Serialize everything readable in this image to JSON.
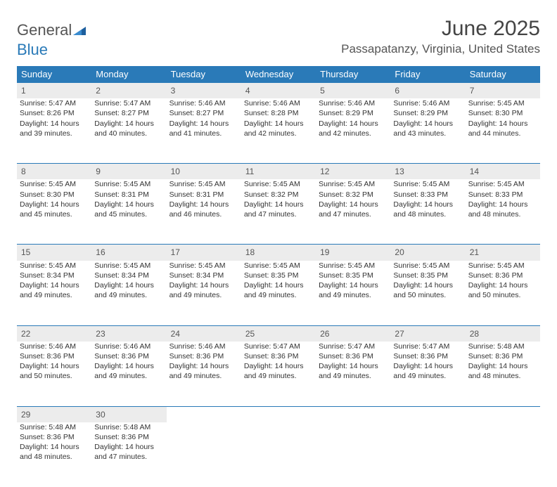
{
  "brand": {
    "word1": "General",
    "word2": "Blue",
    "accent_color": "#2a7ab8"
  },
  "title": "June 2025",
  "location": "Passapatanzy, Virginia, United States",
  "colors": {
    "header_bg": "#2a7ab8",
    "header_text": "#ffffff",
    "daynum_bg": "#ececec",
    "rule": "#2a7ab8",
    "body_text": "#333333"
  },
  "weekdays": [
    "Sunday",
    "Monday",
    "Tuesday",
    "Wednesday",
    "Thursday",
    "Friday",
    "Saturday"
  ],
  "weeks": [
    [
      {
        "n": "1",
        "sr": "5:47 AM",
        "ss": "8:26 PM",
        "dl": "14 hours and 39 minutes."
      },
      {
        "n": "2",
        "sr": "5:47 AM",
        "ss": "8:27 PM",
        "dl": "14 hours and 40 minutes."
      },
      {
        "n": "3",
        "sr": "5:46 AM",
        "ss": "8:27 PM",
        "dl": "14 hours and 41 minutes."
      },
      {
        "n": "4",
        "sr": "5:46 AM",
        "ss": "8:28 PM",
        "dl": "14 hours and 42 minutes."
      },
      {
        "n": "5",
        "sr": "5:46 AM",
        "ss": "8:29 PM",
        "dl": "14 hours and 42 minutes."
      },
      {
        "n": "6",
        "sr": "5:46 AM",
        "ss": "8:29 PM",
        "dl": "14 hours and 43 minutes."
      },
      {
        "n": "7",
        "sr": "5:45 AM",
        "ss": "8:30 PM",
        "dl": "14 hours and 44 minutes."
      }
    ],
    [
      {
        "n": "8",
        "sr": "5:45 AM",
        "ss": "8:30 PM",
        "dl": "14 hours and 45 minutes."
      },
      {
        "n": "9",
        "sr": "5:45 AM",
        "ss": "8:31 PM",
        "dl": "14 hours and 45 minutes."
      },
      {
        "n": "10",
        "sr": "5:45 AM",
        "ss": "8:31 PM",
        "dl": "14 hours and 46 minutes."
      },
      {
        "n": "11",
        "sr": "5:45 AM",
        "ss": "8:32 PM",
        "dl": "14 hours and 47 minutes."
      },
      {
        "n": "12",
        "sr": "5:45 AM",
        "ss": "8:32 PM",
        "dl": "14 hours and 47 minutes."
      },
      {
        "n": "13",
        "sr": "5:45 AM",
        "ss": "8:33 PM",
        "dl": "14 hours and 48 minutes."
      },
      {
        "n": "14",
        "sr": "5:45 AM",
        "ss": "8:33 PM",
        "dl": "14 hours and 48 minutes."
      }
    ],
    [
      {
        "n": "15",
        "sr": "5:45 AM",
        "ss": "8:34 PM",
        "dl": "14 hours and 49 minutes."
      },
      {
        "n": "16",
        "sr": "5:45 AM",
        "ss": "8:34 PM",
        "dl": "14 hours and 49 minutes."
      },
      {
        "n": "17",
        "sr": "5:45 AM",
        "ss": "8:34 PM",
        "dl": "14 hours and 49 minutes."
      },
      {
        "n": "18",
        "sr": "5:45 AM",
        "ss": "8:35 PM",
        "dl": "14 hours and 49 minutes."
      },
      {
        "n": "19",
        "sr": "5:45 AM",
        "ss": "8:35 PM",
        "dl": "14 hours and 49 minutes."
      },
      {
        "n": "20",
        "sr": "5:45 AM",
        "ss": "8:35 PM",
        "dl": "14 hours and 50 minutes."
      },
      {
        "n": "21",
        "sr": "5:45 AM",
        "ss": "8:36 PM",
        "dl": "14 hours and 50 minutes."
      }
    ],
    [
      {
        "n": "22",
        "sr": "5:46 AM",
        "ss": "8:36 PM",
        "dl": "14 hours and 50 minutes."
      },
      {
        "n": "23",
        "sr": "5:46 AM",
        "ss": "8:36 PM",
        "dl": "14 hours and 49 minutes."
      },
      {
        "n": "24",
        "sr": "5:46 AM",
        "ss": "8:36 PM",
        "dl": "14 hours and 49 minutes."
      },
      {
        "n": "25",
        "sr": "5:47 AM",
        "ss": "8:36 PM",
        "dl": "14 hours and 49 minutes."
      },
      {
        "n": "26",
        "sr": "5:47 AM",
        "ss": "8:36 PM",
        "dl": "14 hours and 49 minutes."
      },
      {
        "n": "27",
        "sr": "5:47 AM",
        "ss": "8:36 PM",
        "dl": "14 hours and 49 minutes."
      },
      {
        "n": "28",
        "sr": "5:48 AM",
        "ss": "8:36 PM",
        "dl": "14 hours and 48 minutes."
      }
    ],
    [
      {
        "n": "29",
        "sr": "5:48 AM",
        "ss": "8:36 PM",
        "dl": "14 hours and 48 minutes."
      },
      {
        "n": "30",
        "sr": "5:48 AM",
        "ss": "8:36 PM",
        "dl": "14 hours and 47 minutes."
      },
      null,
      null,
      null,
      null,
      null
    ]
  ],
  "labels": {
    "sunrise": "Sunrise:",
    "sunset": "Sunset:",
    "daylight": "Daylight:"
  }
}
